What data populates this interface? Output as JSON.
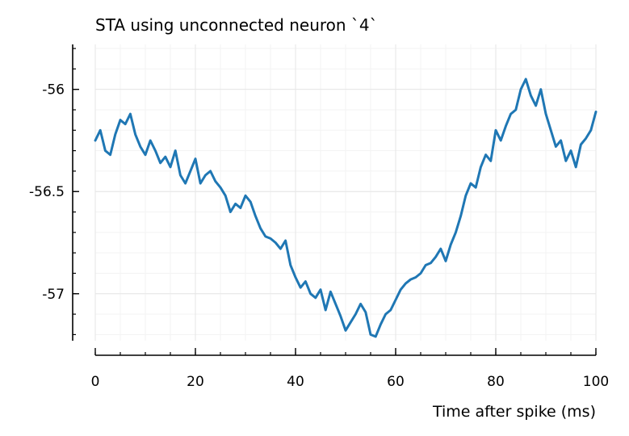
{
  "chart_data": {
    "type": "line",
    "title": "STA using unconnected neuron `4`",
    "xlabel": "Time after spike (ms)",
    "ylabel": "",
    "xlim": [
      0,
      100
    ],
    "ylim": [
      -57.23,
      -55.78
    ],
    "xticks": [
      0,
      20,
      40,
      60,
      80,
      100
    ],
    "xtick_labels": [
      "0",
      "20",
      "40",
      "60",
      "80",
      "100"
    ],
    "yticks": [
      -56,
      -56.5,
      -57
    ],
    "ytick_labels": [
      "-56",
      "-56.5",
      "-57"
    ],
    "grid": true,
    "legend": "none",
    "series": [
      {
        "color": "#1f77b4",
        "x": [
          0,
          1,
          2,
          3,
          4,
          5,
          6,
          7,
          8,
          9,
          10,
          11,
          12,
          13,
          14,
          15,
          16,
          17,
          18,
          19,
          20,
          21,
          22,
          23,
          24,
          25,
          26,
          27,
          28,
          29,
          30,
          31,
          32,
          33,
          34,
          35,
          36,
          37,
          38,
          39,
          40,
          41,
          42,
          43,
          44,
          45,
          46,
          47,
          48,
          49,
          50,
          51,
          52,
          53,
          54,
          55,
          56,
          57,
          58,
          59,
          60,
          61,
          62,
          63,
          64,
          65,
          66,
          67,
          68,
          69,
          70,
          71,
          72,
          73,
          74,
          75,
          76,
          77,
          78,
          79,
          80,
          81,
          82,
          83,
          84,
          85,
          86,
          87,
          88,
          89,
          90,
          91,
          92,
          93,
          94,
          95,
          96,
          97,
          98,
          99,
          100
        ],
        "y": [
          -56.25,
          -56.2,
          -56.3,
          -56.32,
          -56.22,
          -56.15,
          -56.17,
          -56.12,
          -56.22,
          -56.28,
          -56.32,
          -56.25,
          -56.3,
          -56.36,
          -56.33,
          -56.38,
          -56.3,
          -56.42,
          -56.46,
          -56.4,
          -56.34,
          -56.46,
          -56.42,
          -56.4,
          -56.45,
          -56.48,
          -56.52,
          -56.6,
          -56.56,
          -56.58,
          -56.52,
          -56.55,
          -56.62,
          -56.68,
          -56.72,
          -56.73,
          -56.75,
          -56.78,
          -56.74,
          -56.86,
          -56.92,
          -56.97,
          -56.94,
          -57.0,
          -57.02,
          -56.98,
          -57.08,
          -56.99,
          -57.05,
          -57.11,
          -57.18,
          -57.14,
          -57.1,
          -57.05,
          -57.09,
          -57.2,
          -57.21,
          -57.15,
          -57.1,
          -57.08,
          -57.03,
          -56.98,
          -56.95,
          -56.93,
          -56.92,
          -56.9,
          -56.86,
          -56.85,
          -56.82,
          -56.78,
          -56.84,
          -56.76,
          -56.7,
          -56.62,
          -56.52,
          -56.46,
          -56.48,
          -56.38,
          -56.32,
          -56.35,
          -56.2,
          -56.25,
          -56.18,
          -56.12,
          -56.1,
          -56.0,
          -55.95,
          -56.03,
          -56.08,
          -56.0,
          -56.12,
          -56.2,
          -56.28,
          -56.25,
          -56.35,
          -56.3,
          -56.38,
          -56.27,
          -56.24,
          -56.2,
          -56.11
        ]
      }
    ]
  }
}
